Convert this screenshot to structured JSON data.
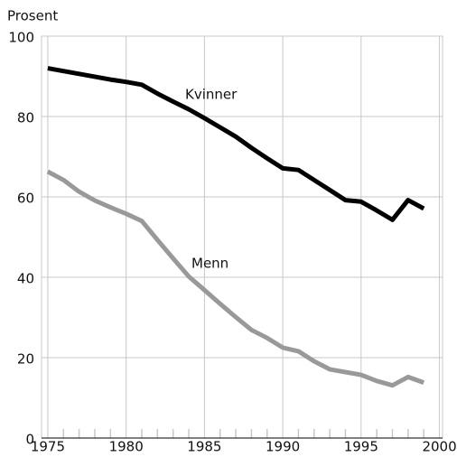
{
  "chart_data": {
    "type": "line",
    "ylabel": "Prosent",
    "x": [
      1975,
      1976,
      1977,
      1978,
      1979,
      1980,
      1981,
      1982,
      1983,
      1984,
      1985,
      1986,
      1987,
      1988,
      1989,
      1990,
      1991,
      1992,
      1993,
      1994,
      1995,
      1996,
      1997,
      1998,
      1999
    ],
    "series": [
      {
        "name": "Kvinner",
        "color": "#000000",
        "values": [
          92,
          91.3,
          90.6,
          89.9,
          89.2,
          88.6,
          87.9,
          85.7,
          83.7,
          81.8,
          79.6,
          77.3,
          75,
          72.2,
          69.6,
          67.1,
          66.7,
          64.2,
          61.7,
          59.2,
          58.8,
          56.6,
          54.3,
          59.2,
          57.1
        ]
      },
      {
        "name": "Menn",
        "color": "#999999",
        "values": [
          66.3,
          64.2,
          61.3,
          59.1,
          57.4,
          55.8,
          54,
          49.3,
          44.7,
          40.2,
          36.8,
          33.4,
          30.1,
          26.9,
          24.9,
          22.5,
          21.6,
          19.1,
          17.1,
          16.4,
          15.7,
          14.2,
          13.1,
          15.2,
          13.8
        ]
      }
    ],
    "xlim": [
      1974.6,
      2000.2
    ],
    "ylim": [
      0,
      100
    ],
    "xticks": [
      1975,
      1980,
      1985,
      1990,
      1995,
      2000
    ],
    "xticks_minor": [
      1976,
      1977,
      1978,
      1979,
      1981,
      1982,
      1983,
      1984,
      1986,
      1987,
      1988,
      1989,
      1991,
      1992,
      1993,
      1994,
      1996,
      1997,
      1998,
      1999
    ],
    "yticks": [
      0,
      20,
      40,
      60,
      80,
      100
    ],
    "grid": true
  }
}
